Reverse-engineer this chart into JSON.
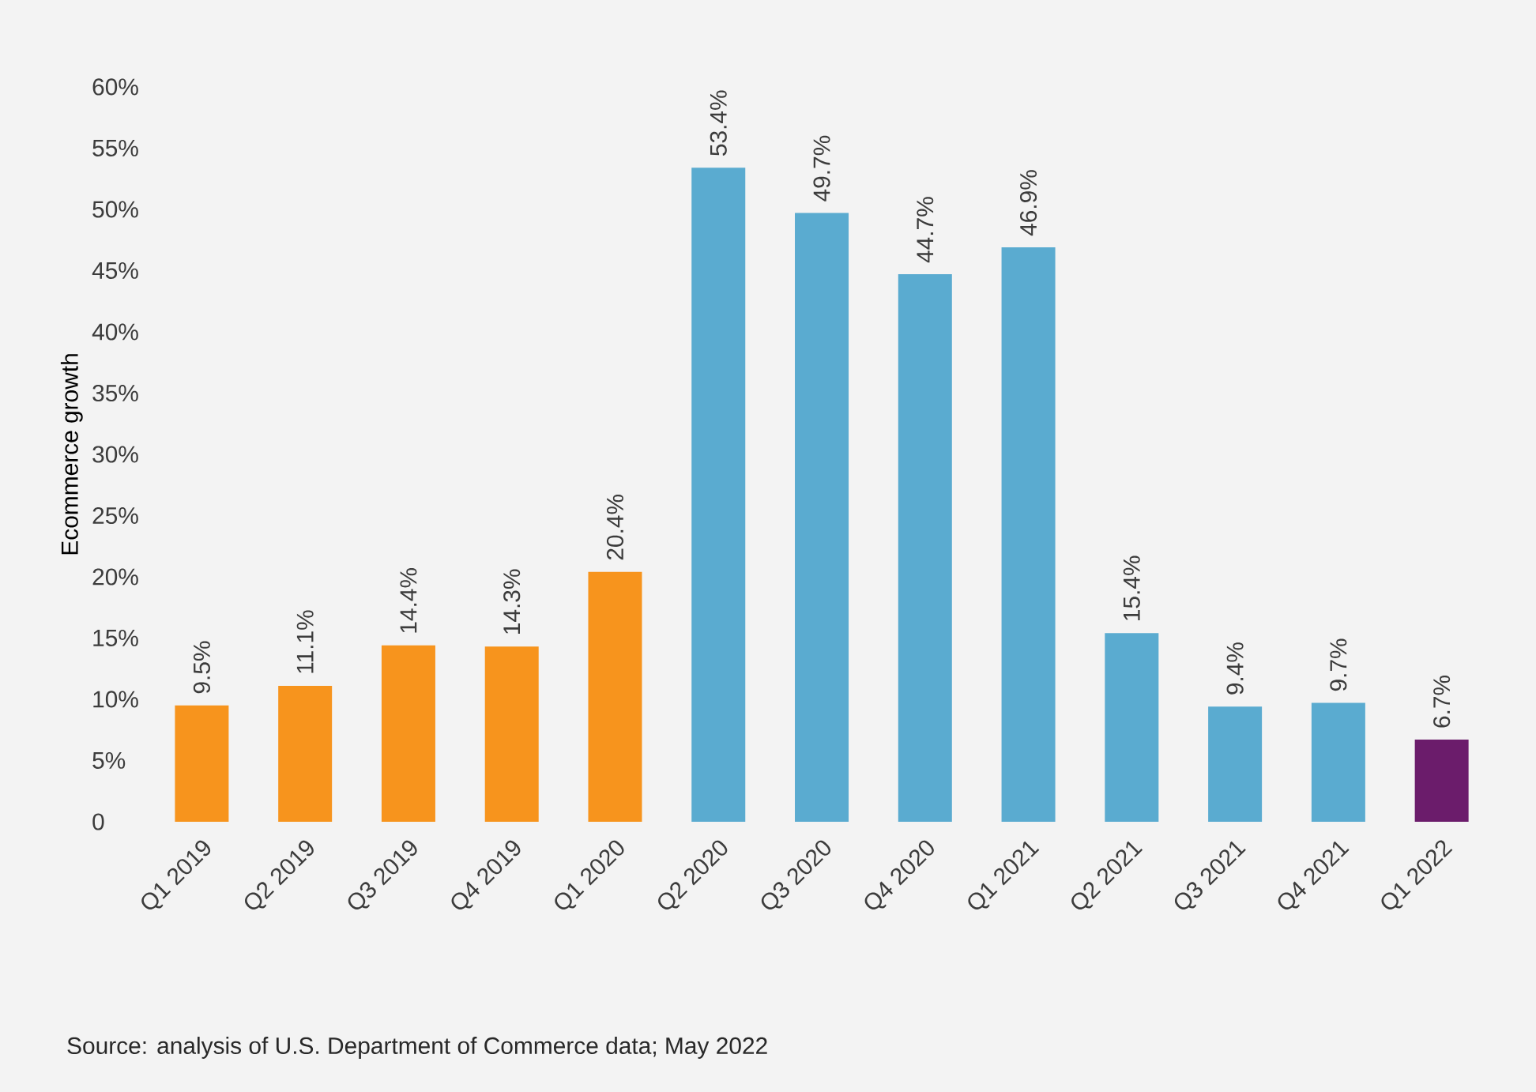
{
  "chart_data": {
    "type": "bar",
    "ylabel": "Ecommerce growth",
    "categories": [
      "Q1 2019",
      "Q2 2019",
      "Q3 2019",
      "Q4 2019",
      "Q1 2020",
      "Q2 2020",
      "Q3 2020",
      "Q4 2020",
      "Q1 2021",
      "Q2 2021",
      "Q3 2021",
      "Q4 2021",
      "Q1 2022"
    ],
    "values": [
      9.5,
      11.1,
      14.4,
      14.3,
      20.4,
      53.4,
      49.7,
      44.7,
      46.9,
      15.4,
      9.4,
      9.7,
      6.7
    ],
    "value_labels": [
      "9.5%",
      "11.1%",
      "14.4%",
      "14.3%",
      "20.4%",
      "53.4%",
      "49.7%",
      "44.7%",
      "46.9%",
      "15.4%",
      "9.4%",
      "9.7%",
      "6.7%"
    ],
    "colors": [
      "#f7941d",
      "#f7941d",
      "#f7941d",
      "#f7941d",
      "#f7941d",
      "#5aabd0",
      "#5aabd0",
      "#5aabd0",
      "#5aabd0",
      "#5aabd0",
      "#5aabd0",
      "#5aabd0",
      "#6b1c6b"
    ],
    "ylim": [
      0,
      60
    ],
    "yticks": [
      0,
      {
        "value": 5,
        "label": "5%"
      },
      {
        "value": 10,
        "label": "10%"
      },
      {
        "value": 15,
        "label": "15%"
      },
      {
        "value": 20,
        "label": "20%"
      },
      {
        "value": 25,
        "label": "25%"
      },
      {
        "value": 30,
        "label": "30%"
      },
      {
        "value": 35,
        "label": "35%"
      },
      {
        "value": 40,
        "label": "40%"
      },
      {
        "value": 45,
        "label": "45%"
      },
      {
        "value": 50,
        "label": "50%"
      },
      {
        "value": 55,
        "label": "55%"
      },
      {
        "value": 60,
        "label": "60%"
      }
    ],
    "annotations": [
      "Source: analysis of U.S. Department of Commerce data; May 2022"
    ]
  }
}
